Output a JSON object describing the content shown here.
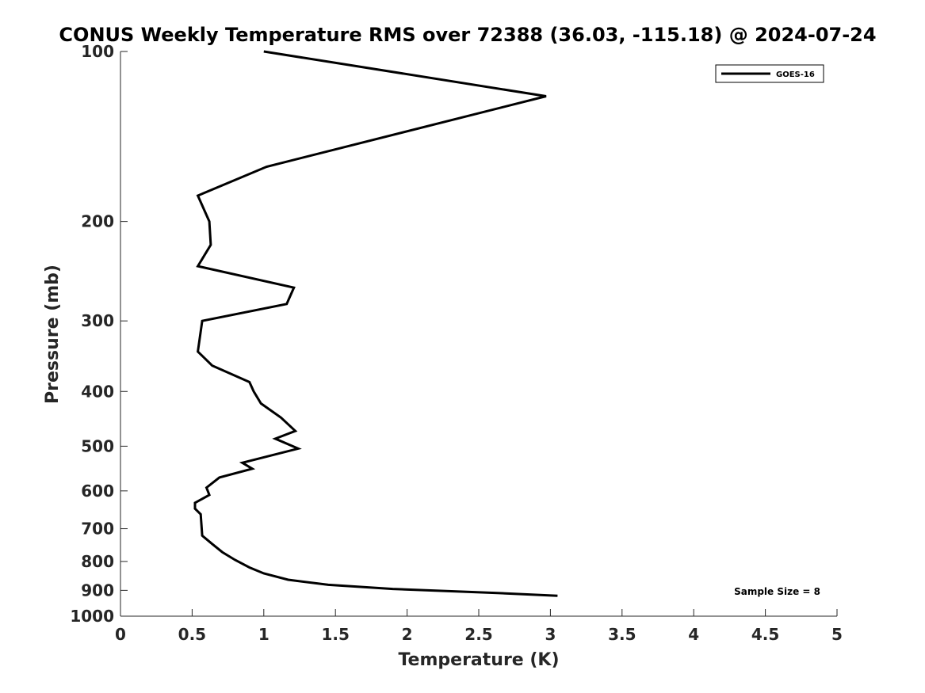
{
  "chart_data": {
    "type": "line",
    "title": "CONUS Weekly Temperature RMS over 72388 (36.03, -115.18) @ 2024-07-24",
    "xlabel": "Temperature (K)",
    "ylabel": "Pressure (mb)",
    "xlim": [
      0,
      5
    ],
    "ylim": [
      1000,
      100
    ],
    "y_scale": "log",
    "grid": false,
    "legend_position": "top-right",
    "x_ticks": [
      0,
      0.5,
      1,
      1.5,
      2,
      2.5,
      3,
      3.5,
      4,
      4.5,
      5
    ],
    "x_tick_labels": [
      "0",
      "0.5",
      "1",
      "1.5",
      "2",
      "2.5",
      "3",
      "3.5",
      "4",
      "4.5",
      "5"
    ],
    "y_ticks": [
      100,
      200,
      300,
      400,
      500,
      600,
      700,
      800,
      900,
      1000
    ],
    "y_tick_labels": [
      "100",
      "200",
      "300",
      "400",
      "500",
      "600",
      "700",
      "800",
      "900",
      "1000"
    ],
    "annotation": "Sample Size = 8",
    "series": [
      {
        "name": "GOES-16",
        "color": "#000000",
        "points": [
          {
            "x": 1.0,
            "p": 100
          },
          {
            "x": 2.97,
            "p": 120
          },
          {
            "x": 1.02,
            "p": 160
          },
          {
            "x": 0.54,
            "p": 180
          },
          {
            "x": 0.62,
            "p": 200
          },
          {
            "x": 0.63,
            "p": 220
          },
          {
            "x": 0.54,
            "p": 240
          },
          {
            "x": 1.21,
            "p": 262
          },
          {
            "x": 1.16,
            "p": 280
          },
          {
            "x": 0.57,
            "p": 300
          },
          {
            "x": 0.54,
            "p": 340
          },
          {
            "x": 0.64,
            "p": 360
          },
          {
            "x": 0.9,
            "p": 385
          },
          {
            "x": 0.93,
            "p": 400
          },
          {
            "x": 0.98,
            "p": 420
          },
          {
            "x": 1.12,
            "p": 445
          },
          {
            "x": 1.22,
            "p": 470
          },
          {
            "x": 1.08,
            "p": 485
          },
          {
            "x": 1.24,
            "p": 505
          },
          {
            "x": 0.85,
            "p": 535
          },
          {
            "x": 0.92,
            "p": 548
          },
          {
            "x": 0.69,
            "p": 568
          },
          {
            "x": 0.6,
            "p": 592
          },
          {
            "x": 0.62,
            "p": 610
          },
          {
            "x": 0.52,
            "p": 630
          },
          {
            "x": 0.52,
            "p": 645
          },
          {
            "x": 0.56,
            "p": 660
          },
          {
            "x": 0.57,
            "p": 720
          },
          {
            "x": 0.64,
            "p": 745
          },
          {
            "x": 0.71,
            "p": 770
          },
          {
            "x": 0.8,
            "p": 795
          },
          {
            "x": 0.9,
            "p": 820
          },
          {
            "x": 1.0,
            "p": 840
          },
          {
            "x": 1.17,
            "p": 862
          },
          {
            "x": 1.45,
            "p": 880
          },
          {
            "x": 1.9,
            "p": 895
          },
          {
            "x": 2.63,
            "p": 910
          },
          {
            "x": 3.05,
            "p": 920
          }
        ]
      }
    ]
  }
}
